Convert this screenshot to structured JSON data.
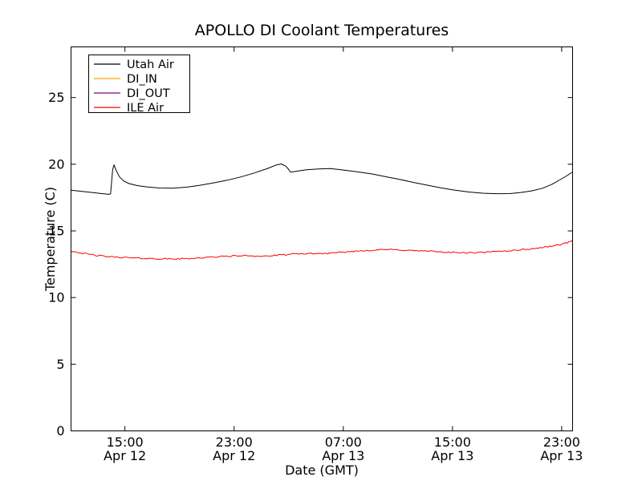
{
  "chart_data": {
    "type": "line",
    "title": "APOLLO DI Coolant Temperatures",
    "xlabel": "Date (GMT)",
    "ylabel": "Temperature (C)",
    "background_color": "#ffffff",
    "axis_color": "#000000",
    "grid": false,
    "legend_position": "upper left",
    "x_unit": "hours since Apr 12 00:00 GMT",
    "xlim": [
      11.05,
      47.8
    ],
    "ylim": [
      0,
      28.8
    ],
    "yticks": [
      0,
      5,
      10,
      15,
      20,
      25
    ],
    "xticks": [
      {
        "value": 15,
        "line1": "15:00",
        "line2": "Apr 12"
      },
      {
        "value": 23,
        "line1": "23:00",
        "line2": "Apr 12"
      },
      {
        "value": 31,
        "line1": "07:00",
        "line2": "Apr 13"
      },
      {
        "value": 39,
        "line1": "15:00",
        "line2": "Apr 13"
      },
      {
        "value": 47,
        "line1": "23:00",
        "line2": "Apr 13"
      }
    ],
    "series": [
      {
        "name": "Utah Air",
        "color": "#000000",
        "noise": 0,
        "points": [
          [
            11.05,
            18.05
          ],
          [
            11.8,
            17.97
          ],
          [
            12.6,
            17.88
          ],
          [
            13.3,
            17.8
          ],
          [
            13.85,
            17.74
          ],
          [
            13.95,
            17.78
          ],
          [
            14.1,
            19.6
          ],
          [
            14.2,
            19.95
          ],
          [
            14.35,
            19.55
          ],
          [
            14.6,
            19.05
          ],
          [
            14.9,
            18.75
          ],
          [
            15.3,
            18.55
          ],
          [
            15.9,
            18.4
          ],
          [
            16.6,
            18.3
          ],
          [
            17.5,
            18.22
          ],
          [
            18.5,
            18.2
          ],
          [
            19.5,
            18.28
          ],
          [
            20.5,
            18.42
          ],
          [
            21.5,
            18.6
          ],
          [
            22.5,
            18.8
          ],
          [
            23.5,
            19.05
          ],
          [
            24.5,
            19.35
          ],
          [
            25.5,
            19.7
          ],
          [
            26.1,
            19.95
          ],
          [
            26.45,
            20.02
          ],
          [
            26.8,
            19.85
          ],
          [
            27.0,
            19.6
          ],
          [
            27.15,
            19.4
          ],
          [
            27.6,
            19.48
          ],
          [
            28.3,
            19.58
          ],
          [
            29.2,
            19.65
          ],
          [
            30.0,
            19.68
          ],
          [
            30.6,
            19.62
          ],
          [
            31.3,
            19.52
          ],
          [
            32.2,
            19.4
          ],
          [
            33.2,
            19.25
          ],
          [
            34.2,
            19.05
          ],
          [
            35.2,
            18.85
          ],
          [
            36.2,
            18.62
          ],
          [
            37.2,
            18.42
          ],
          [
            38.2,
            18.22
          ],
          [
            39.2,
            18.05
          ],
          [
            40.2,
            17.92
          ],
          [
            41.2,
            17.83
          ],
          [
            42.2,
            17.79
          ],
          [
            43.2,
            17.8
          ],
          [
            44.0,
            17.88
          ],
          [
            44.8,
            18.0
          ],
          [
            45.6,
            18.2
          ],
          [
            46.3,
            18.5
          ],
          [
            46.9,
            18.85
          ],
          [
            47.4,
            19.15
          ],
          [
            47.8,
            19.42
          ]
        ]
      },
      {
        "name": "DI_IN",
        "color": "#ffa500",
        "noise": 0,
        "points": [
          [
            11.05,
            0
          ],
          [
            47.8,
            0
          ]
        ]
      },
      {
        "name": "DI_OUT",
        "color": "#800080",
        "noise": 0,
        "points": [
          [
            11.05,
            0
          ],
          [
            47.8,
            0
          ]
        ]
      },
      {
        "name": "ILE Air",
        "color": "#ff0000",
        "noise": 0.05,
        "points": [
          [
            11.05,
            13.5
          ],
          [
            12,
            13.3
          ],
          [
            13,
            13.15
          ],
          [
            14,
            13.05
          ],
          [
            15,
            13.0
          ],
          [
            16,
            12.95
          ],
          [
            17,
            12.92
          ],
          [
            18,
            12.9
          ],
          [
            19,
            12.9
          ],
          [
            20,
            12.95
          ],
          [
            21,
            13.0
          ],
          [
            22,
            13.08
          ],
          [
            23,
            13.12
          ],
          [
            24,
            13.15
          ],
          [
            24.8,
            13.1
          ],
          [
            25.6,
            13.12
          ],
          [
            26.5,
            13.2
          ],
          [
            27.5,
            13.27
          ],
          [
            28.5,
            13.3
          ],
          [
            29.5,
            13.3
          ],
          [
            30.5,
            13.35
          ],
          [
            31.5,
            13.45
          ],
          [
            32.5,
            13.52
          ],
          [
            33.5,
            13.58
          ],
          [
            34.3,
            13.6
          ],
          [
            35.2,
            13.57
          ],
          [
            36.2,
            13.52
          ],
          [
            37.2,
            13.48
          ],
          [
            38.2,
            13.42
          ],
          [
            39.2,
            13.38
          ],
          [
            40.2,
            13.35
          ],
          [
            41.2,
            13.38
          ],
          [
            42.2,
            13.45
          ],
          [
            43.2,
            13.52
          ],
          [
            44.2,
            13.6
          ],
          [
            45.2,
            13.7
          ],
          [
            46.0,
            13.82
          ],
          [
            46.8,
            13.95
          ],
          [
            47.4,
            14.12
          ],
          [
            47.8,
            14.3
          ]
        ]
      }
    ]
  }
}
